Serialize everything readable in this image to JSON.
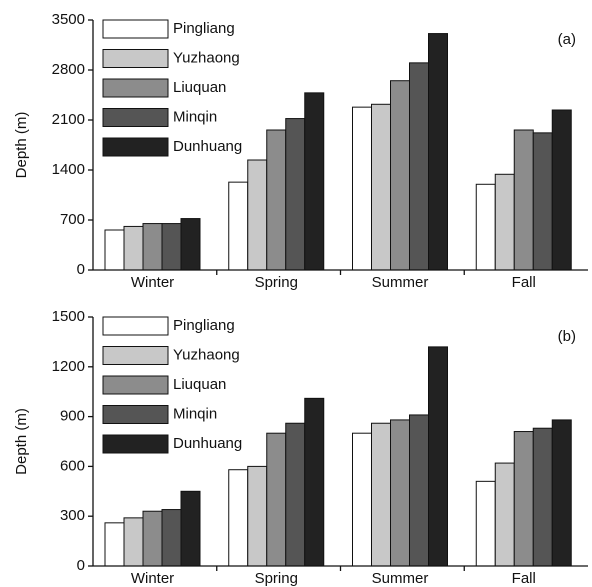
{
  "chart_data": [
    {
      "type": "bar",
      "panel_label": "(a)",
      "y_label": "Depth (m)",
      "categories": [
        "Winter",
        "Spring",
        "Summer",
        "Fall"
      ],
      "ylim": [
        0,
        3500
      ],
      "yticks": [
        0,
        700,
        1400,
        2100,
        2800,
        3500
      ],
      "legend": "upper left",
      "series": [
        {
          "name": "Pingliang",
          "color": "#ffffff",
          "values": [
            560,
            1230,
            2280,
            1200
          ]
        },
        {
          "name": "Yuzhaong",
          "color": "#c8c8c8",
          "values": [
            610,
            1540,
            2320,
            1340
          ]
        },
        {
          "name": "Liuquan",
          "color": "#8c8c8c",
          "values": [
            650,
            1960,
            2650,
            1960
          ]
        },
        {
          "name": "Minqin",
          "color": "#555555",
          "values": [
            650,
            2120,
            2900,
            1920
          ]
        },
        {
          "name": "Dunhuang",
          "color": "#222222",
          "values": [
            720,
            2480,
            3310,
            2240
          ]
        }
      ]
    },
    {
      "type": "bar",
      "panel_label": "(b)",
      "y_label": "Depth (m)",
      "categories": [
        "Winter",
        "Spring",
        "Summer",
        "Fall"
      ],
      "ylim": [
        0,
        1500
      ],
      "yticks": [
        0,
        300,
        600,
        900,
        1200,
        1500
      ],
      "legend": "upper left",
      "series": [
        {
          "name": "Pingliang",
          "color": "#ffffff",
          "values": [
            260,
            580,
            800,
            510
          ]
        },
        {
          "name": "Yuzhaong",
          "color": "#c8c8c8",
          "values": [
            290,
            600,
            860,
            620
          ]
        },
        {
          "name": "Liuquan",
          "color": "#8c8c8c",
          "values": [
            330,
            800,
            880,
            810
          ]
        },
        {
          "name": "Minqin",
          "color": "#555555",
          "values": [
            340,
            860,
            910,
            830
          ]
        },
        {
          "name": "Dunhuang",
          "color": "#222222",
          "values": [
            450,
            1010,
            1320,
            880
          ]
        }
      ]
    }
  ]
}
